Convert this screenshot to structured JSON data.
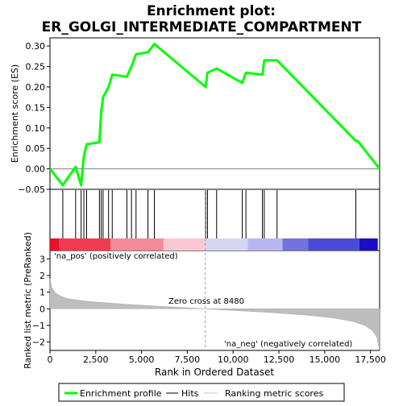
{
  "chart_data": {
    "type": "line",
    "title_line1": "Enrichment plot:",
    "title_line2": "ER_GOLGI_INTERMEDIATE_COMPARTMENT",
    "top_panel": {
      "ylabel": "Enrichment score (ES)",
      "ylim": [
        -0.05,
        0.32
      ],
      "yticks": [
        "−0.05",
        "0.00",
        "0.05",
        "0.10",
        "0.15",
        "0.20",
        "0.25",
        "0.30"
      ],
      "ytick_values": [
        -0.05,
        0,
        0.05,
        0.1,
        0.15,
        0.2,
        0.25,
        0.3
      ],
      "series": [
        {
          "name": "Enrichment profile",
          "x": [
            0,
            700,
            1400,
            1700,
            1850,
            2000,
            2700,
            2800,
            2900,
            3200,
            3400,
            4200,
            4450,
            4700,
            5350,
            5700,
            8500,
            8600,
            9100,
            10500,
            10700,
            11600,
            11700,
            12400,
            16700,
            16800,
            18000
          ],
          "y": [
            0.0,
            -0.04,
            0.005,
            -0.04,
            0.03,
            0.06,
            0.065,
            0.14,
            0.175,
            0.2,
            0.23,
            0.225,
            0.25,
            0.28,
            0.285,
            0.305,
            0.2,
            0.235,
            0.245,
            0.21,
            0.235,
            0.23,
            0.265,
            0.265,
            0.068,
            0.068,
            0.0
          ]
        }
      ]
    },
    "hits": [
      700,
      1400,
      1700,
      1850,
      2000,
      2700,
      2800,
      2900,
      3200,
      3400,
      4200,
      4450,
      4700,
      5350,
      5700,
      8500,
      8600,
      9100,
      10500,
      10700,
      11600,
      11700,
      12400,
      16700
    ],
    "bottom_panel": {
      "ylabel": "Ranked list metric (PreRanked)",
      "xlabel": "Rank in Ordered Dataset",
      "ylim": [
        -2.5,
        3.5
      ],
      "yticks": [
        "−2",
        "−1",
        "0",
        "1",
        "2",
        "3"
      ],
      "ytick_values": [
        -2,
        -1,
        0,
        1,
        2,
        3
      ],
      "metric_curve": {
        "x": [
          0,
          100,
          300,
          600,
          1000,
          2000,
          4000,
          6000,
          8480,
          10000,
          12000,
          14000,
          15500,
          16500,
          17200,
          17600,
          17850,
          17950,
          18000
        ],
        "y": [
          1.8,
          1.3,
          0.95,
          0.75,
          0.6,
          0.45,
          0.28,
          0.15,
          0.0,
          -0.1,
          -0.22,
          -0.38,
          -0.55,
          -0.75,
          -1.0,
          -1.3,
          -1.7,
          -2.3,
          -2.5
        ]
      },
      "zero_cross_label": "Zero cross at 8480",
      "zero_cross_x": 8480,
      "pos_label": "'na_pos' (positively correlated)",
      "neg_label": "'na_neg' (negatively correlated)",
      "pos_color": "#dd0000",
      "neg_color": "#1b1bd6"
    },
    "xlim": [
      0,
      18000
    ],
    "xticks": [
      "0",
      "2,500",
      "5,000",
      "7,500",
      "10,000",
      "12,500",
      "15,000",
      "17,500"
    ],
    "xtick_values": [
      0,
      2500,
      5000,
      7500,
      10000,
      12500,
      15000,
      17500
    ],
    "colorbar": [
      {
        "x0": 0,
        "x1": 500,
        "color": "#e8102a"
      },
      {
        "x0": 500,
        "x1": 3300,
        "color": "#f23a52"
      },
      {
        "x0": 3300,
        "x1": 6200,
        "color": "#f58a98"
      },
      {
        "x0": 6200,
        "x1": 8480,
        "color": "#f9c6d4"
      },
      {
        "x0": 8480,
        "x1": 10800,
        "color": "#d6d6f4"
      },
      {
        "x0": 10800,
        "x1": 12700,
        "color": "#b8b8ee"
      },
      {
        "x0": 12700,
        "x1": 14100,
        "color": "#7272e0"
      },
      {
        "x0": 14100,
        "x1": 16900,
        "color": "#4a4ad8"
      },
      {
        "x0": 16900,
        "x1": 17900,
        "color": "#1b0cc8"
      }
    ],
    "legend": [
      {
        "label": "Enrichment profile",
        "color": "#00ff00",
        "style": "thick"
      },
      {
        "label": "Hits",
        "color": "#000000",
        "style": "thin"
      },
      {
        "label": "Ranking metric scores",
        "color": "#c0c0c0",
        "style": "thin"
      }
    ],
    "colors": {
      "profile": "#00ff00",
      "hit": "#000000",
      "metric": "#bdbdbd",
      "zero_line": "#808080"
    }
  }
}
